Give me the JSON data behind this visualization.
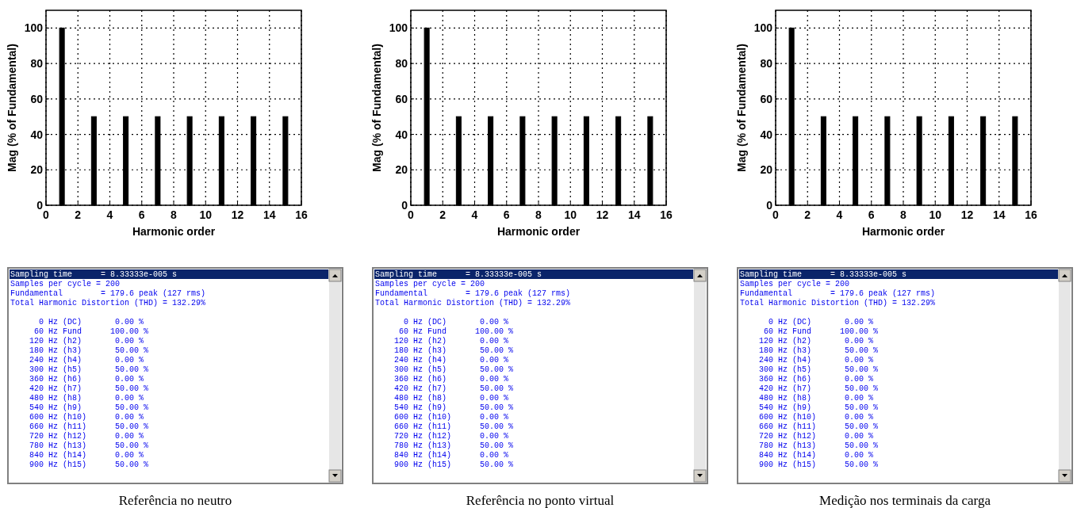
{
  "chart_data": [
    {
      "type": "bar",
      "xlabel": "Harmonic order",
      "ylabel": "Mag (% of Fundamental)",
      "x": [
        1,
        2,
        3,
        4,
        5,
        6,
        7,
        8,
        9,
        10,
        11,
        12,
        13,
        14,
        15
      ],
      "values": [
        100,
        0,
        50,
        0,
        50,
        0,
        50,
        0,
        50,
        0,
        50,
        0,
        50,
        0,
        50
      ],
      "color": "#000000",
      "xlim": [
        0,
        16
      ],
      "xticks": [
        0,
        2,
        4,
        6,
        8,
        10,
        12,
        14,
        16
      ],
      "ylim": [
        0,
        110
      ],
      "yticks": [
        0,
        20,
        40,
        60,
        80,
        100
      ],
      "grid": true
    },
    {
      "type": "bar",
      "xlabel": "Harmonic order",
      "ylabel": "Mag (% of Fundamental)",
      "x": [
        1,
        2,
        3,
        4,
        5,
        6,
        7,
        8,
        9,
        10,
        11,
        12,
        13,
        14,
        15
      ],
      "values": [
        100,
        0,
        50,
        0,
        50,
        0,
        50,
        0,
        50,
        0,
        50,
        0,
        50,
        0,
        50
      ],
      "color": "#000000",
      "xlim": [
        0,
        16
      ],
      "xticks": [
        0,
        2,
        4,
        6,
        8,
        10,
        12,
        14,
        16
      ],
      "ylim": [
        0,
        110
      ],
      "yticks": [
        0,
        20,
        40,
        60,
        80,
        100
      ],
      "grid": true
    },
    {
      "type": "bar",
      "xlabel": "Harmonic order",
      "ylabel": "Mag (% of Fundamental)",
      "x": [
        1,
        2,
        3,
        4,
        5,
        6,
        7,
        8,
        9,
        10,
        11,
        12,
        13,
        14,
        15
      ],
      "values": [
        100,
        0,
        50,
        0,
        50,
        0,
        50,
        0,
        50,
        0,
        50,
        0,
        50,
        0,
        50
      ],
      "color": "#000000",
      "xlim": [
        0,
        16
      ],
      "xticks": [
        0,
        2,
        4,
        6,
        8,
        10,
        12,
        14,
        16
      ],
      "ylim": [
        0,
        110
      ],
      "yticks": [
        0,
        20,
        40,
        60,
        80,
        100
      ],
      "grid": true
    },
    {
      "type": "other",
      "title": "Referência no neutro",
      "annotations": [
        "Sampling time      = 8.33333e-005 s",
        "Samples per cycle = 200",
        "Fundamental        = 179.6 peak (127 rms)",
        "Total Harmonic Distortion (THD) = 132.29%",
        "      0 Hz (DC)       0.00 %",
        "     60 Hz Fund      100.00 %",
        "    120 Hz (h2)       0.00 %",
        "    180 Hz (h3)       50.00 %",
        "    240 Hz (h4)       0.00 %",
        "    300 Hz (h5)       50.00 %",
        "    360 Hz (h6)       0.00 %",
        "    420 Hz (h7)       50.00 %",
        "    480 Hz (h8)       0.00 %",
        "    540 Hz (h9)       50.00 %",
        "    600 Hz (h10)      0.00 %",
        "    660 Hz (h11)      50.00 %",
        "    720 Hz (h12)      0.00 %",
        "    780 Hz (h13)      50.00 %",
        "    840 Hz (h14)      0.00 %",
        "    900 Hz (h15)      50.00 %"
      ]
    },
    {
      "type": "other",
      "title": "Referência no ponto virtual",
      "annotations": [
        "Sampling time      = 8.33333e-005 s",
        "Samples per cycle = 200",
        "Fundamental        = 179.6 peak (127 rms)",
        "Total Harmonic Distortion (THD) = 132.29%",
        "      0 Hz (DC)       0.00 %",
        "     60 Hz Fund      100.00 %",
        "    120 Hz (h2)       0.00 %",
        "    180 Hz (h3)       50.00 %",
        "    240 Hz (h4)       0.00 %",
        "    300 Hz (h5)       50.00 %",
        "    360 Hz (h6)       0.00 %",
        "    420 Hz (h7)       50.00 %",
        "    480 Hz (h8)       0.00 %",
        "    540 Hz (h9)       50.00 %",
        "    600 Hz (h10)      0.00 %",
        "    660 Hz (h11)      50.00 %",
        "    720 Hz (h12)      0.00 %",
        "    780 Hz (h13)      50.00 %",
        "    840 Hz (h14)      0.00 %",
        "    900 Hz (h15)      50.00 %"
      ]
    },
    {
      "type": "other",
      "title": "Medição nos terminais da carga",
      "annotations": [
        "Sampling time      = 8.33333e-005 s",
        "Samples per cycle = 200",
        "Fundamental        = 179.6 peak (127 rms)",
        "Total Harmonic Distortion (THD) = 132.29%",
        "      0 Hz (DC)       0.00 %",
        "     60 Hz Fund      100.00 %",
        "    120 Hz (h2)       0.00 %",
        "    180 Hz (h3)       50.00 %",
        "    240 Hz (h4)       0.00 %",
        "    300 Hz (h5)       50.00 %",
        "    360 Hz (h6)       0.00 %",
        "    420 Hz (h7)       50.00 %",
        "    480 Hz (h8)       0.00 %",
        "    540 Hz (h9)       50.00 %",
        "    600 Hz (h10)      0.00 %",
        "    660 Hz (h11)      50.00 %",
        "    720 Hz (h12)      0.00 %",
        "    780 Hz (h13)      50.00 %",
        "    840 Hz (h14)      0.00 %",
        "    900 Hz (h15)      50.00 %"
      ]
    }
  ]
}
